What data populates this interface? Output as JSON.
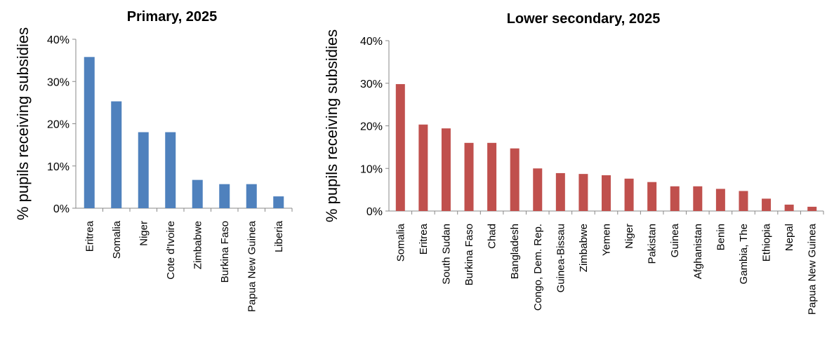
{
  "chart_data": [
    {
      "type": "bar",
      "title": "Primary, 2025",
      "ylabel": "% pupils receiving subsidies",
      "xlabel": "",
      "ylim": [
        0,
        40
      ],
      "yticks": [
        "0%",
        "10%",
        "20%",
        "30%",
        "40%"
      ],
      "grid": false,
      "color": "#4f81bd",
      "categories": [
        "Eritrea",
        "Somalia",
        "Niger",
        "Cote d'Ivoire",
        "Zimbabwe",
        "Burkina Faso",
        "Papua New Guinea",
        "Liberia"
      ],
      "values": [
        35.8,
        25.3,
        18.0,
        18.0,
        6.7,
        5.7,
        5.7,
        2.8
      ]
    },
    {
      "type": "bar",
      "title": "Lower secondary, 2025",
      "ylabel": "% pupils receiving subsidies",
      "xlabel": "",
      "ylim": [
        0,
        40
      ],
      "yticks": [
        "0%",
        "10%",
        "20%",
        "30%",
        "40%"
      ],
      "grid": false,
      "color": "#c0504d",
      "categories": [
        "Somalia",
        "Eritrea",
        "South Sudan",
        "Burkina Faso",
        "Chad",
        "Bangladesh",
        "Congo, Dem. Rep.",
        "Guinea-Bissau",
        "Zimbabwe",
        "Yemen",
        "Niger",
        "Pakistan",
        "Guinea",
        "Afghanistan",
        "Benin",
        "Gambia, The",
        "Ethiopia",
        "Nepal",
        "Papua New Guinea"
      ],
      "values": [
        29.8,
        20.3,
        19.4,
        16.0,
        16.0,
        14.7,
        10.0,
        8.9,
        8.7,
        8.4,
        7.6,
        6.8,
        5.8,
        5.8,
        5.2,
        4.7,
        2.9,
        1.5,
        1.0
      ]
    }
  ]
}
